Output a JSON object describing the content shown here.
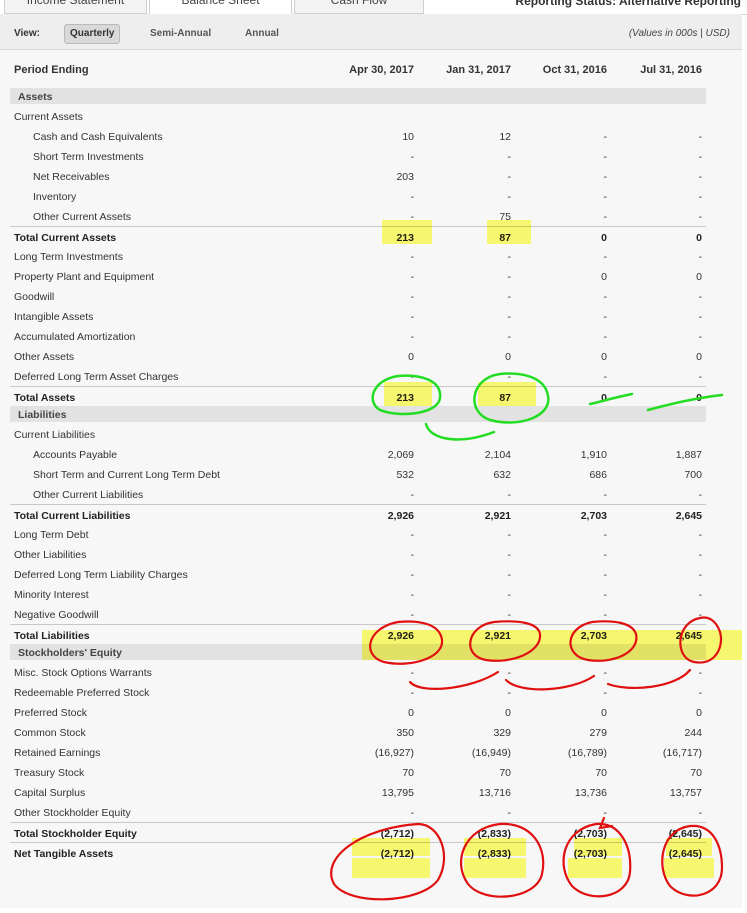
{
  "tabs": {
    "items": [
      "Income Statement",
      "Balance Sheet",
      "Cash Flow"
    ],
    "right_text": "Reporting Status: Alternative Reporting"
  },
  "view": {
    "label": "View:",
    "options": [
      "Quarterly",
      "Semi-Annual",
      "Annual"
    ],
    "selected": "Quarterly",
    "units_note": "(Values in 000s | USD)"
  },
  "header": {
    "label": "Period Ending",
    "periods": [
      "Apr 30, 2017",
      "Jan 31, 2017",
      "Oct 31, 2016",
      "Jul 31, 2016"
    ]
  },
  "rows": [
    {
      "type": "section",
      "label": "Assets"
    },
    {
      "type": "group",
      "label": "Current Assets"
    },
    {
      "type": "item",
      "indent": true,
      "label": "Cash and Cash Equivalents",
      "values": [
        "10",
        "12",
        "-",
        "-"
      ]
    },
    {
      "type": "item",
      "indent": true,
      "label": "Short Term Investments",
      "values": [
        "-",
        "-",
        "-",
        "-"
      ]
    },
    {
      "type": "item",
      "indent": true,
      "label": "Net Receivables",
      "values": [
        "203",
        "-",
        "-",
        "-"
      ]
    },
    {
      "type": "item",
      "indent": true,
      "label": "Inventory",
      "values": [
        "-",
        "-",
        "-",
        "-"
      ]
    },
    {
      "type": "item",
      "indent": true,
      "label": "Other Current Assets",
      "values": [
        "-",
        "75",
        "-",
        "-"
      ]
    },
    {
      "type": "total",
      "label": "Total Current Assets",
      "values": [
        "213",
        "87",
        "0",
        "0"
      ]
    },
    {
      "type": "item",
      "label": "Long Term Investments",
      "values": [
        "-",
        "-",
        "-",
        "-"
      ]
    },
    {
      "type": "item",
      "label": "Property Plant and Equipment",
      "values": [
        "-",
        "-",
        "0",
        "0"
      ]
    },
    {
      "type": "item",
      "label": "Goodwill",
      "values": [
        "-",
        "-",
        "-",
        "-"
      ]
    },
    {
      "type": "item",
      "label": "Intangible Assets",
      "values": [
        "-",
        "-",
        "-",
        "-"
      ]
    },
    {
      "type": "item",
      "label": "Accumulated Amortization",
      "values": [
        "-",
        "-",
        "-",
        "-"
      ]
    },
    {
      "type": "item",
      "label": "Other Assets",
      "values": [
        "0",
        "0",
        "0",
        "0"
      ]
    },
    {
      "type": "item",
      "label": "Deferred Long Term Asset Charges",
      "values": [
        "-",
        "-",
        "-",
        "-"
      ]
    },
    {
      "type": "total",
      "label": "Total Assets",
      "values": [
        "213",
        "87",
        "0",
        "0"
      ]
    },
    {
      "type": "section",
      "label": "Liabilities"
    },
    {
      "type": "group",
      "label": "Current Liabilities"
    },
    {
      "type": "item",
      "indent": true,
      "label": "Accounts Payable",
      "values": [
        "2,069",
        "2,104",
        "1,910",
        "1,887"
      ]
    },
    {
      "type": "item",
      "indent": true,
      "label": "Short Term and Current Long Term Debt",
      "values": [
        "532",
        "632",
        "686",
        "700"
      ]
    },
    {
      "type": "item",
      "indent": true,
      "label": "Other Current Liabilities",
      "values": [
        "-",
        "-",
        "-",
        "-"
      ]
    },
    {
      "type": "total",
      "label": "Total Current Liabilities",
      "values": [
        "2,926",
        "2,921",
        "2,703",
        "2,645"
      ]
    },
    {
      "type": "item",
      "label": "Long Term Debt",
      "values": [
        "-",
        "-",
        "-",
        "-"
      ]
    },
    {
      "type": "item",
      "label": "Other Liabilities",
      "values": [
        "-",
        "-",
        "-",
        "-"
      ]
    },
    {
      "type": "item",
      "label": "Deferred Long Term Liability Charges",
      "values": [
        "-",
        "-",
        "-",
        "-"
      ]
    },
    {
      "type": "item",
      "label": "Minority Interest",
      "values": [
        "-",
        "-",
        "-",
        "-"
      ]
    },
    {
      "type": "item",
      "label": "Negative Goodwill",
      "values": [
        "-",
        "-",
        "-",
        "-"
      ]
    },
    {
      "type": "total",
      "label": "Total Liabilities",
      "values": [
        "2,926",
        "2,921",
        "2,703",
        "2,645"
      ]
    },
    {
      "type": "section",
      "label": "Stockholders' Equity"
    },
    {
      "type": "item",
      "label": "Misc. Stock Options Warrants",
      "values": [
        "-",
        "-",
        "-",
        "-"
      ]
    },
    {
      "type": "item",
      "label": "Redeemable Preferred Stock",
      "values": [
        "-",
        "-",
        "-",
        "-"
      ]
    },
    {
      "type": "item",
      "label": "Preferred Stock",
      "values": [
        "0",
        "0",
        "0",
        "0"
      ]
    },
    {
      "type": "item",
      "label": "Common Stock",
      "values": [
        "350",
        "329",
        "279",
        "244"
      ]
    },
    {
      "type": "item",
      "label": "Retained Earnings",
      "values": [
        "(16,927)",
        "(16,949)",
        "(16,789)",
        "(16,717)"
      ]
    },
    {
      "type": "item",
      "label": "Treasury Stock",
      "values": [
        "70",
        "70",
        "70",
        "70"
      ]
    },
    {
      "type": "item",
      "label": "Capital Surplus",
      "values": [
        "13,795",
        "13,716",
        "13,736",
        "13,757"
      ]
    },
    {
      "type": "item",
      "label": "Other Stockholder Equity",
      "values": [
        "-",
        "-",
        "-",
        "-"
      ]
    },
    {
      "type": "total",
      "label": "Total Stockholder Equity",
      "values": [
        "(2,712)",
        "(2,833)",
        "(2,703)",
        "(2,645)"
      ]
    },
    {
      "type": "total",
      "label": "Net Tangible Assets",
      "values": [
        "(2,712)",
        "(2,833)",
        "(2,703)",
        "(2,645)"
      ]
    }
  ],
  "annotations": {
    "highlight_color": "#fdfd00",
    "green_ink": "#22dd22",
    "red_ink": "#e01010"
  }
}
